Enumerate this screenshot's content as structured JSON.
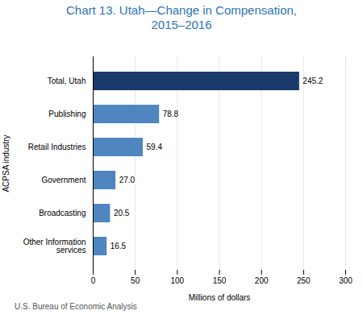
{
  "chart_data": {
    "type": "bar",
    "orientation": "horizontal",
    "title": "Chart 13. Utah—Change in Compensation,\n2015–2016",
    "xlabel": "Millions of dollars",
    "ylabel": "ACPSA industry",
    "categories": [
      "Other Information\nservices",
      "Broadcasting",
      "Government",
      "Retail Industries",
      "Publishing",
      "Total, Utah"
    ],
    "values": [
      16.5,
      20.5,
      27.0,
      59.4,
      78.8,
      245.2
    ],
    "value_labels": [
      "16.5",
      "20.5",
      "27.0",
      "59.4",
      "78.8",
      "245.2"
    ],
    "colors": [
      "#4f86c0",
      "#4f86c0",
      "#4f86c0",
      "#4f86c0",
      "#4f86c0",
      "#1a3a6b"
    ],
    "xlim": [
      0,
      300
    ],
    "xticks": [
      0,
      50,
      100,
      150,
      200,
      250,
      300
    ],
    "grid": true,
    "data_labels": true,
    "annotations": [
      "U.S. Bureau of Economic Analysis"
    ]
  }
}
